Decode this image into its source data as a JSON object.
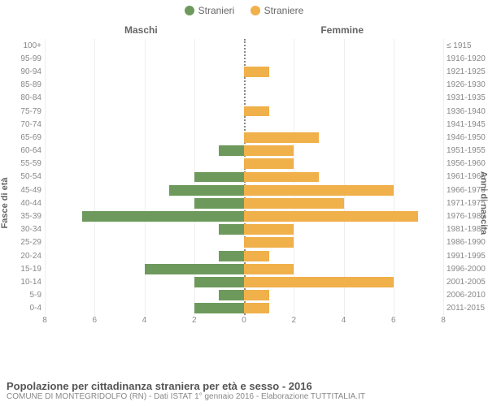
{
  "legend": [
    {
      "label": "Stranieri",
      "color": "#6d9a5c"
    },
    {
      "label": "Straniere",
      "color": "#f0b04a"
    }
  ],
  "column_titles": {
    "left": "Maschi",
    "right": "Femmine"
  },
  "y_axis": {
    "left_title": "Fasce di età",
    "right_title": "Anni di nascita"
  },
  "x_axis": {
    "max": 8,
    "ticks": [
      8,
      6,
      4,
      2,
      0,
      2,
      4,
      6,
      8
    ]
  },
  "colors": {
    "male": "#6d9a5c",
    "female": "#f0b04a",
    "grid": "#eeeeee",
    "center": "#888888"
  },
  "rows": [
    {
      "age": "100+",
      "birth": "≤ 1915",
      "m": 0,
      "f": 0
    },
    {
      "age": "95-99",
      "birth": "1916-1920",
      "m": 0,
      "f": 0
    },
    {
      "age": "90-94",
      "birth": "1921-1925",
      "m": 0,
      "f": 1
    },
    {
      "age": "85-89",
      "birth": "1926-1930",
      "m": 0,
      "f": 0
    },
    {
      "age": "80-84",
      "birth": "1931-1935",
      "m": 0,
      "f": 0
    },
    {
      "age": "75-79",
      "birth": "1936-1940",
      "m": 0,
      "f": 1
    },
    {
      "age": "70-74",
      "birth": "1941-1945",
      "m": 0,
      "f": 0
    },
    {
      "age": "65-69",
      "birth": "1946-1950",
      "m": 0,
      "f": 3
    },
    {
      "age": "60-64",
      "birth": "1951-1955",
      "m": 1,
      "f": 2
    },
    {
      "age": "55-59",
      "birth": "1956-1960",
      "m": 0,
      "f": 2
    },
    {
      "age": "50-54",
      "birth": "1961-1965",
      "m": 2,
      "f": 3
    },
    {
      "age": "45-49",
      "birth": "1966-1970",
      "m": 3,
      "f": 6
    },
    {
      "age": "40-44",
      "birth": "1971-1975",
      "m": 2,
      "f": 4
    },
    {
      "age": "35-39",
      "birth": "1976-1980",
      "m": 6.5,
      "f": 7
    },
    {
      "age": "30-34",
      "birth": "1981-1985",
      "m": 1,
      "f": 2
    },
    {
      "age": "25-29",
      "birth": "1986-1990",
      "m": 0,
      "f": 2
    },
    {
      "age": "20-24",
      "birth": "1991-1995",
      "m": 1,
      "f": 1
    },
    {
      "age": "15-19",
      "birth": "1996-2000",
      "m": 4,
      "f": 2
    },
    {
      "age": "10-14",
      "birth": "2001-2005",
      "m": 2,
      "f": 6
    },
    {
      "age": "5-9",
      "birth": "2006-2010",
      "m": 1,
      "f": 1
    },
    {
      "age": "0-4",
      "birth": "2011-2015",
      "m": 2,
      "f": 1
    }
  ],
  "footer": {
    "title": "Popolazione per cittadinanza straniera per età e sesso - 2016",
    "subtitle": "COMUNE DI MONTEGRIDOLFO (RN) - Dati ISTAT 1° gennaio 2016 - Elaborazione TUTTITALIA.IT"
  }
}
